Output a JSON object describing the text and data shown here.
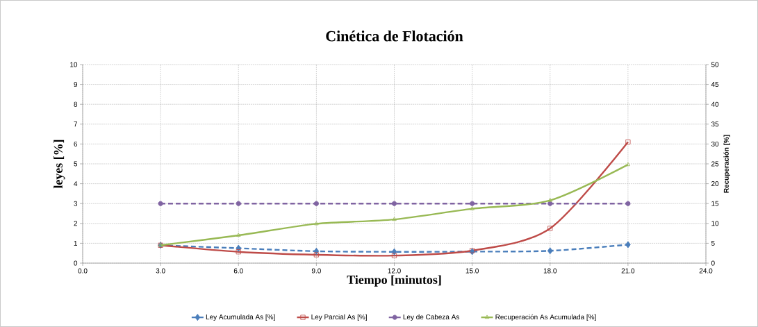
{
  "chart_data": {
    "type": "line",
    "title": "Cinética de Flotación",
    "xlabel": "Tiempo [minutos]",
    "ylabel": "leyes [%]",
    "y2label": "Recuperación [%]",
    "x": [
      3,
      6,
      9,
      12,
      15,
      18,
      21
    ],
    "xlim": [
      0,
      24
    ],
    "xticks": [
      {
        "value": 0,
        "label": "0.0"
      },
      {
        "value": 3,
        "label": "3.0"
      },
      {
        "value": 6,
        "label": "6.0"
      },
      {
        "value": 9,
        "label": "9.0"
      },
      {
        "value": 12,
        "label": "12.0"
      },
      {
        "value": 15,
        "label": "15.0"
      },
      {
        "value": 18,
        "label": "18.0"
      },
      {
        "value": 21,
        "label": "21.0"
      },
      {
        "value": 24,
        "label": "24.0"
      }
    ],
    "ylim": [
      0,
      10
    ],
    "yticks": [
      0,
      1,
      2,
      3,
      4,
      5,
      6,
      7,
      8,
      9,
      10
    ],
    "y2lim": [
      0,
      50
    ],
    "y2ticks": [
      0,
      5,
      10,
      15,
      20,
      25,
      30,
      35,
      40,
      45,
      50
    ],
    "grid": true,
    "legend": "bottom",
    "series": [
      {
        "name": "Ley Acumulada As [%]",
        "color": "#4a7ebb",
        "marker": "diamond",
        "line_style": "dashed",
        "values": [
          0.9,
          0.75,
          0.6,
          0.57,
          0.58,
          0.62,
          0.93
        ]
      },
      {
        "name": "Ley Parcial As [%]",
        "color": "#be4b48",
        "marker": "square",
        "line_style": "solid",
        "values": [
          0.9,
          0.57,
          0.42,
          0.38,
          0.63,
          1.75,
          6.1
        ]
      },
      {
        "name": "Ley de Cabeza  As",
        "color": "#8064a2",
        "marker": "circle",
        "line_style": "dashed",
        "values": [
          3.0,
          3.0,
          3.0,
          3.0,
          3.0,
          3.0,
          3.0
        ]
      },
      {
        "name": "Recuperación As Acumulada  [%]",
        "color": "#98b954",
        "marker": "triangle",
        "line_style": "solid",
        "axis": "y2",
        "values": [
          4.5,
          7.0,
          9.9,
          11.0,
          13.7,
          15.8,
          24.8
        ]
      }
    ]
  }
}
